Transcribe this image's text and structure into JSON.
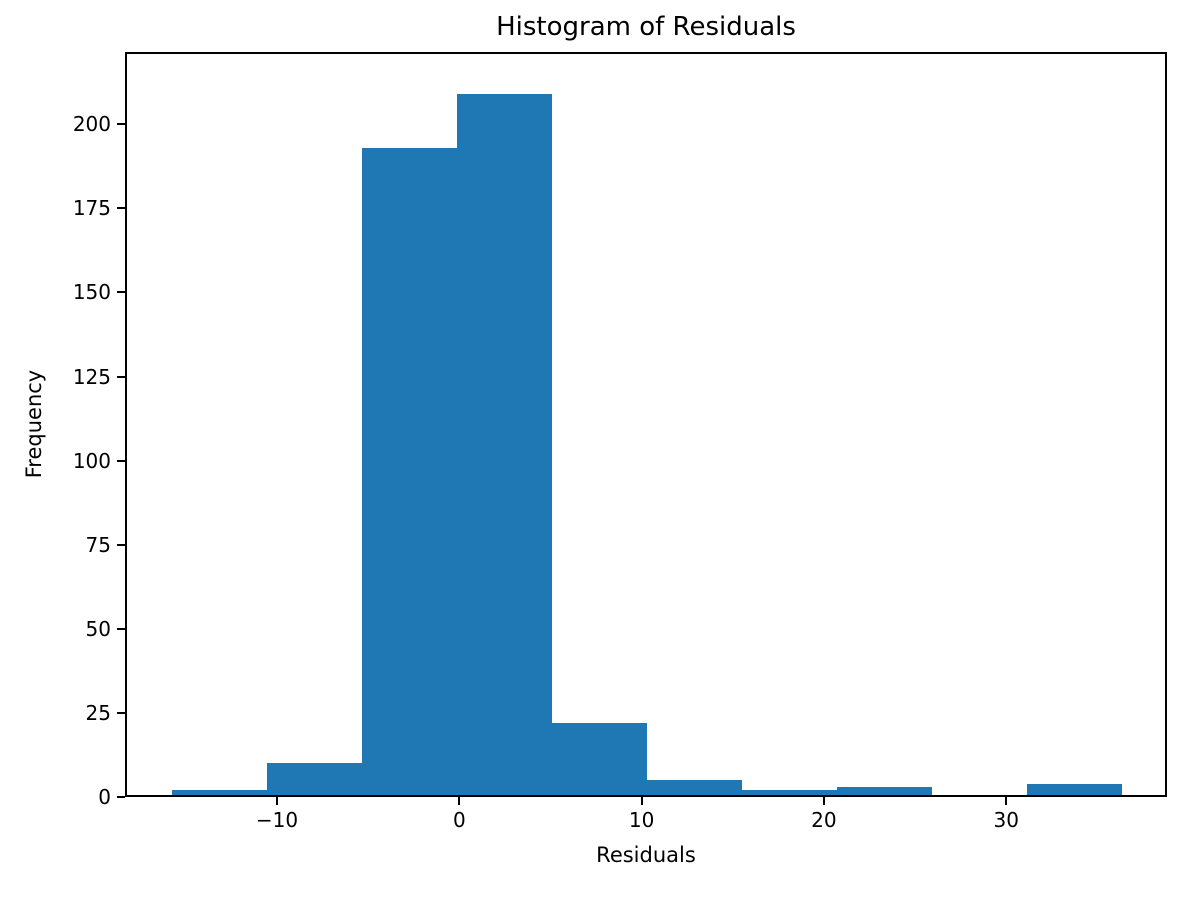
{
  "figure": {
    "background": "#ffffff",
    "text_color": "#000000",
    "spine_color": "#000000"
  },
  "chart_data": {
    "type": "bar",
    "subtype": "histogram",
    "title": "Histogram of Residuals",
    "xlabel": "Residuals",
    "ylabel": "Frequency",
    "bar_color": "#1f77b4",
    "bin_edges": [
      -15.77,
      -10.56,
      -5.34,
      -0.13,
      5.08,
      10.3,
      15.51,
      20.72,
      25.94,
      31.15,
      36.37
    ],
    "counts": [
      2,
      10,
      193,
      209,
      22,
      5,
      2,
      3,
      0,
      4
    ],
    "total_count": 450,
    "xlim": [
      -18.34,
      38.82
    ],
    "ylim": [
      0,
      221.5
    ],
    "xticks": {
      "values": [
        -10,
        0,
        10,
        20,
        30
      ],
      "labels": [
        "−10",
        "0",
        "10",
        "20",
        "30"
      ]
    },
    "yticks": {
      "values": [
        0,
        25,
        50,
        75,
        100,
        125,
        150,
        175,
        200
      ],
      "labels": [
        "0",
        "25",
        "50",
        "75",
        "100",
        "125",
        "150",
        "175",
        "200"
      ]
    },
    "grid": false,
    "legend": null
  }
}
